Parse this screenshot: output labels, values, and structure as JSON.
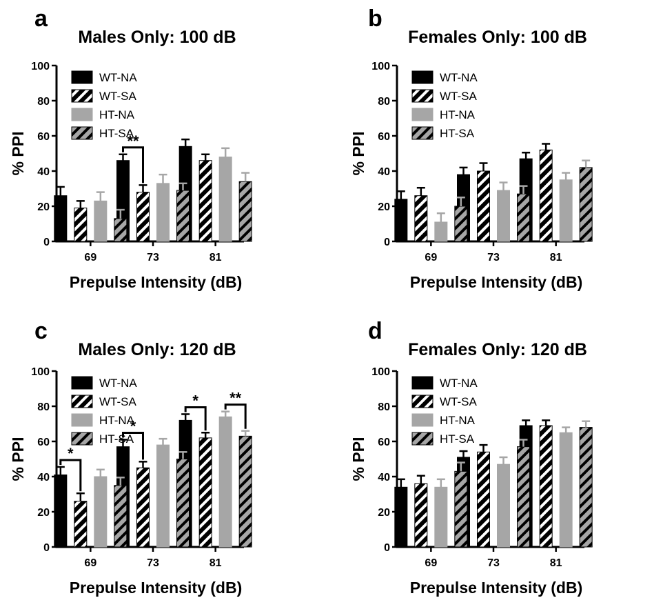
{
  "colors": {
    "wt": "#000000",
    "ht": "#a6a6a6",
    "axis": "#000000",
    "stripe_on_wt": "#ffffff",
    "stripe_on_ht": "#000000"
  },
  "legend_labels": [
    "WT-NA",
    "WT-SA",
    "HT-NA",
    "HT-SA"
  ],
  "chart_data": [
    {
      "letter": "a",
      "type": "bar",
      "title": "Males Only: 100 dB",
      "xlabel": "Prepulse Intensity (dB)",
      "ylabel": "% PPI",
      "categories": [
        "69",
        "73",
        "81"
      ],
      "ylim": [
        0,
        100
      ],
      "yticks": [
        "0",
        "20",
        "40",
        "60",
        "80",
        "100"
      ],
      "legend_position": "top-left",
      "grid": false,
      "series": [
        {
          "name": "WT-NA",
          "values": [
            26,
            46,
            54
          ],
          "errors": [
            5,
            3.5,
            4
          ]
        },
        {
          "name": "WT-SA",
          "values": [
            19,
            28,
            46
          ],
          "errors": [
            4,
            4,
            3.5
          ]
        },
        {
          "name": "HT-NA",
          "values": [
            23,
            33,
            48
          ],
          "errors": [
            5,
            5,
            5
          ]
        },
        {
          "name": "HT-SA",
          "values": [
            13,
            29,
            34
          ],
          "errors": [
            5,
            4,
            5
          ]
        }
      ],
      "significance": [
        {
          "category": 1,
          "from": 0,
          "to": 1,
          "label": "**"
        }
      ]
    },
    {
      "letter": "b",
      "type": "bar",
      "title": "Females Only: 100 dB",
      "xlabel": "Prepulse Intensity (dB)",
      "ylabel": "% PPI",
      "categories": [
        "69",
        "73",
        "81"
      ],
      "ylim": [
        0,
        100
      ],
      "yticks": [
        "0",
        "20",
        "40",
        "60",
        "80",
        "100"
      ],
      "legend_position": "top-left",
      "grid": false,
      "series": [
        {
          "name": "WT-NA",
          "values": [
            24,
            38,
            47
          ],
          "errors": [
            4.5,
            4,
            3.5
          ]
        },
        {
          "name": "WT-SA",
          "values": [
            26,
            40,
            52
          ],
          "errors": [
            4.5,
            4.5,
            3.5
          ]
        },
        {
          "name": "HT-NA",
          "values": [
            11,
            29,
            35
          ],
          "errors": [
            5,
            4.5,
            4
          ]
        },
        {
          "name": "HT-SA",
          "values": [
            20,
            27,
            42
          ],
          "errors": [
            5,
            4.5,
            4
          ]
        }
      ],
      "significance": []
    },
    {
      "letter": "c",
      "type": "bar",
      "title": "Males Only: 120 dB",
      "xlabel": "Prepulse Intensity (dB)",
      "ylabel": "% PPI",
      "categories": [
        "69",
        "73",
        "81"
      ],
      "ylim": [
        0,
        100
      ],
      "yticks": [
        "0",
        "20",
        "40",
        "60",
        "80",
        "100"
      ],
      "legend_position": "top-left",
      "grid": false,
      "series": [
        {
          "name": "WT-NA",
          "values": [
            41,
            57,
            72
          ],
          "errors": [
            4.5,
            4,
            3.5
          ]
        },
        {
          "name": "WT-SA",
          "values": [
            26,
            45,
            62
          ],
          "errors": [
            4.5,
            3.5,
            3
          ]
        },
        {
          "name": "HT-NA",
          "values": [
            40,
            58,
            74
          ],
          "errors": [
            4,
            3.5,
            3
          ]
        },
        {
          "name": "HT-SA",
          "values": [
            35,
            50,
            63
          ],
          "errors": [
            4.5,
            4,
            3
          ]
        }
      ],
      "significance": [
        {
          "category": 0,
          "from": 0,
          "to": 1,
          "label": "*"
        },
        {
          "category": 1,
          "from": 0,
          "to": 1,
          "label": "*"
        },
        {
          "category": 2,
          "from": 0,
          "to": 1,
          "label": "*"
        },
        {
          "category": 2,
          "from": 2,
          "to": 3,
          "label": "**"
        }
      ]
    },
    {
      "letter": "d",
      "type": "bar",
      "title": "Females Only: 120 dB",
      "xlabel": "Prepulse Intensity (dB)",
      "ylabel": "% PPI",
      "categories": [
        "69",
        "73",
        "81"
      ],
      "ylim": [
        0,
        100
      ],
      "yticks": [
        "0",
        "20",
        "40",
        "60",
        "80",
        "100"
      ],
      "legend_position": "top-left",
      "grid": false,
      "series": [
        {
          "name": "WT-NA",
          "values": [
            34,
            51,
            69
          ],
          "errors": [
            4.5,
            3.5,
            3
          ]
        },
        {
          "name": "WT-SA",
          "values": [
            36,
            54,
            69
          ],
          "errors": [
            4.5,
            4,
            3
          ]
        },
        {
          "name": "HT-NA",
          "values": [
            34,
            47,
            65
          ],
          "errors": [
            4.5,
            4,
            3
          ]
        },
        {
          "name": "HT-SA",
          "values": [
            43,
            57,
            68
          ],
          "errors": [
            5,
            4,
            3.5
          ]
        }
      ],
      "significance": []
    }
  ]
}
